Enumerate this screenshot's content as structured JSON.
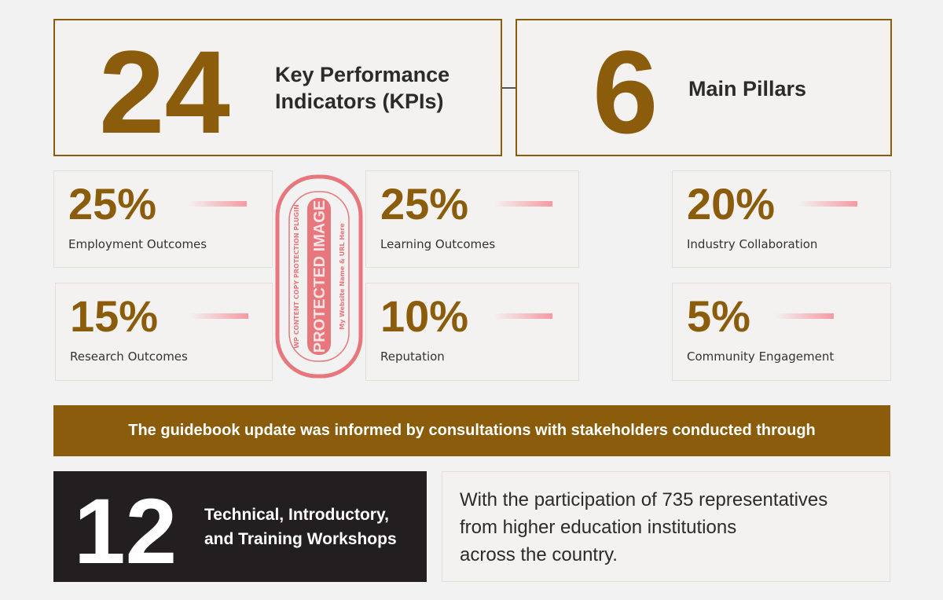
{
  "kpis": {
    "number": "24",
    "label_line1": "Key Performance",
    "label_line2": "Indicators (KPIs)"
  },
  "pillars": {
    "number": "6",
    "label": "Main Pillars"
  },
  "weights": [
    {
      "percent": "25%",
      "label": "Employment Outcomes",
      "value": 25
    },
    {
      "percent": "25%",
      "label": "Learning Outcomes",
      "value": 25
    },
    {
      "percent": "20%",
      "label": "Industry Collaboration",
      "value": 20
    },
    {
      "percent": "15%",
      "label": "Research Outcomes",
      "value": 15
    },
    {
      "percent": "10%",
      "label": "Reputation",
      "value": 10
    },
    {
      "percent": "5%",
      "label": "Community Engagement",
      "value": 5
    }
  ],
  "banner": {
    "text": "The guidebook update was informed by consultations with stakeholders conducted through"
  },
  "workshops": {
    "number": "12",
    "label_line1": "Technical, Introductory,",
    "label_line2": "and Training Workshops"
  },
  "participation": {
    "line1": "With the participation of 735 representatives",
    "line2": "from higher education institutions",
    "line3": "across the country."
  },
  "watermark": {
    "band": "PROTECTED IMAGE",
    "ring_top": "WP CONTENT COPY PROTECTION PLUGIN",
    "ring_bottom": "My Website Name & URL Here"
  },
  "colors": {
    "accent": "#8b5c0b",
    "dark": "#231f20",
    "background": "#f1f2f1",
    "stamp": "#e8777d"
  }
}
